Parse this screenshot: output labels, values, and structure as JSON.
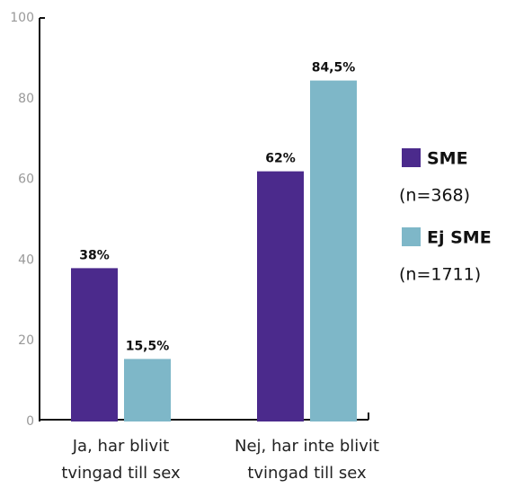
{
  "chart_data": {
    "type": "bar",
    "categories": [
      [
        "Ja, har blivit",
        "tvingad till sex"
      ],
      [
        "Nej, har inte blivit",
        "tvingad till sex"
      ]
    ],
    "series": [
      {
        "name": "SME",
        "sample": "(n=368)",
        "color": "#4b2a8c",
        "values": [
          38,
          62
        ],
        "value_labels": [
          "38%",
          "62%"
        ]
      },
      {
        "name": "Ej SME",
        "sample": "(n=1711)",
        "color": "#7eb7c8",
        "values": [
          15.5,
          84.5
        ],
        "value_labels": [
          "15,5%",
          "84,5%"
        ]
      }
    ],
    "ylim": [
      0,
      100
    ],
    "yticks": [
      0,
      20,
      40,
      60,
      80,
      100
    ],
    "grid": false,
    "legend": "right"
  }
}
